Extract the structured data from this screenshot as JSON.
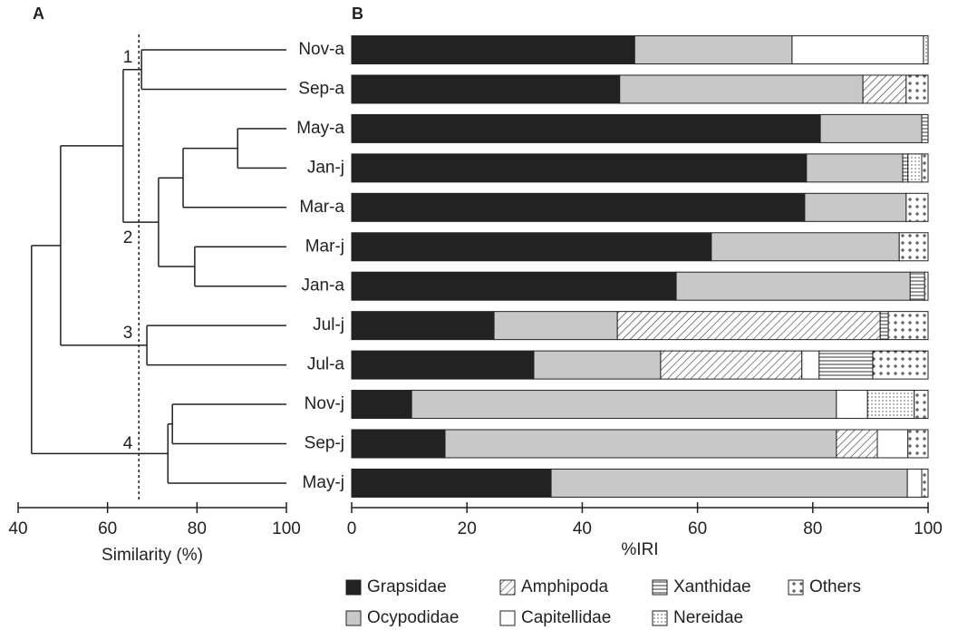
{
  "chart_data": [
    {
      "type": "dendrogram",
      "panel_label": "A",
      "xlabel": "Similarity (%)",
      "xlim": [
        40,
        100
      ],
      "xticks": [
        40,
        60,
        80,
        100
      ],
      "merges": [
        [
          0,
          1,
          67.6
        ],
        [
          2,
          3,
          89.1
        ],
        [
          13,
          4,
          76.9
        ],
        [
          5,
          6,
          79.5
        ],
        [
          14,
          15,
          71.4
        ],
        [
          12,
          16,
          63.5
        ],
        [
          7,
          8,
          68.8
        ],
        [
          9,
          10,
          74.5
        ],
        [
          19,
          11,
          73.5
        ],
        [
          17,
          18,
          49.5
        ],
        [
          21,
          20,
          43.0
        ]
      ],
      "cutoff": 67,
      "cluster_labels": [
        "1",
        "2",
        "3",
        "4"
      ]
    },
    {
      "type": "stacked_barh",
      "panel_label": "B",
      "xlabel": "%IRI",
      "xlim": [
        0,
        100
      ],
      "xticks": [
        0,
        20,
        40,
        60,
        80,
        100
      ],
      "categories": [
        "Nov-a",
        "Sep-a",
        "May-a",
        "Jan-j",
        "Mar-a",
        "Mar-j",
        "Jan-a",
        "Jul-j",
        "Jul-a",
        "Nov-j",
        "Sep-j",
        "May-j"
      ],
      "series": [
        {
          "name": "Grapsidae",
          "color": "#222222",
          "pattern": "solid",
          "values": [
            49.1,
            46.5,
            81.3,
            78.9,
            78.6,
            62.4,
            56.3,
            24.7,
            31.6,
            10.4,
            16.2,
            34.6
          ]
        },
        {
          "name": "Ocypodidae",
          "color": "#c8c8c8",
          "pattern": "solid",
          "values": [
            27.3,
            42.2,
            17.6,
            16.7,
            17.6,
            32.6,
            40.6,
            21.4,
            22.0,
            73.7,
            67.9,
            61.8
          ]
        },
        {
          "name": "Amphipoda",
          "color": "#ffffff",
          "pattern": "hatch",
          "values": [
            0,
            7.5,
            0,
            0,
            0,
            0,
            0,
            45.6,
            24.5,
            0,
            7.1,
            0
          ]
        },
        {
          "name": "Capitellidae",
          "color": "#ffffff",
          "pattern": "solid",
          "values": [
            22.8,
            0,
            0,
            0,
            0,
            0,
            0,
            0,
            3.0,
            5.4,
            5.3,
            2.5
          ]
        },
        {
          "name": "Xanthidae",
          "color": "#ffffff",
          "pattern": "hline",
          "values": [
            0,
            0,
            1.1,
            0.9,
            0,
            0,
            2.5,
            1.4,
            9.3,
            0,
            0,
            0
          ]
        },
        {
          "name": "Nereidae",
          "color": "#ffffff",
          "pattern": "dots",
          "values": [
            0.8,
            0,
            0,
            2.4,
            0,
            0,
            0,
            0,
            0,
            8.1,
            0,
            0
          ]
        },
        {
          "name": "Others",
          "color": "#ffffff",
          "pattern": "plus",
          "values": [
            0,
            3.8,
            0,
            1.1,
            3.8,
            5.0,
            0.6,
            6.9,
            9.6,
            2.4,
            3.5,
            1.1
          ]
        }
      ]
    }
  ]
}
